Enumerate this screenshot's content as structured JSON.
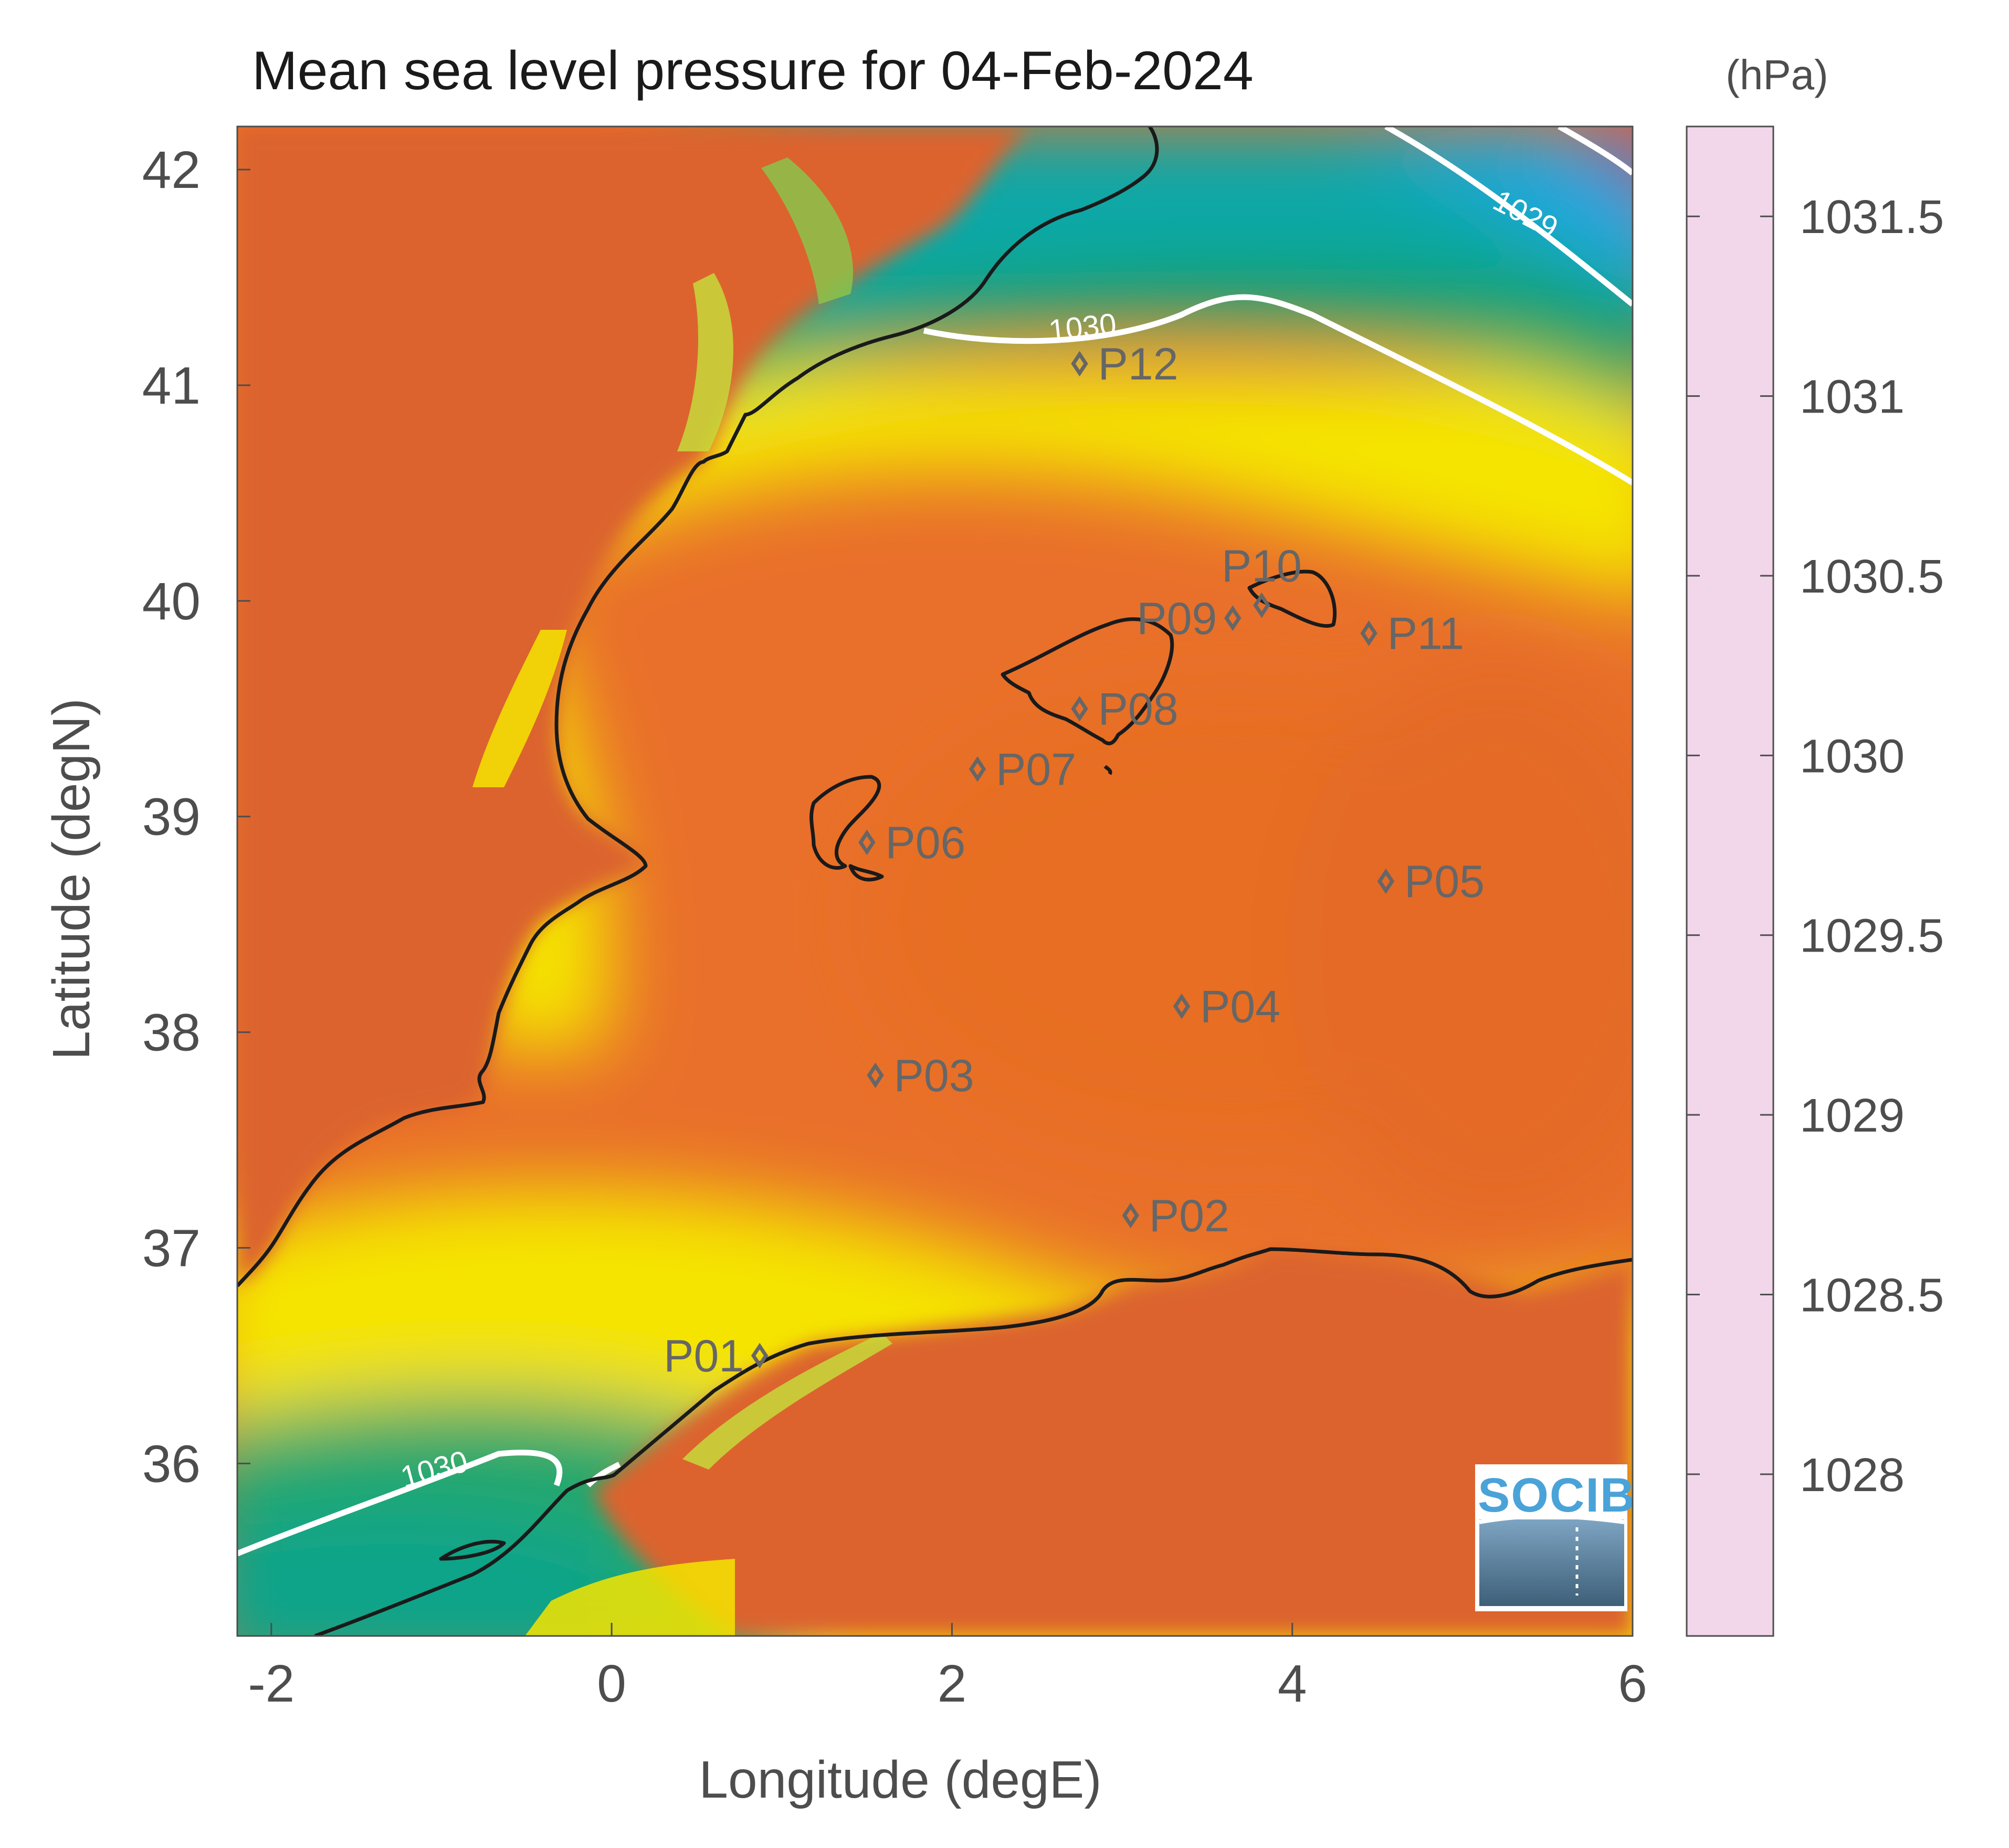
{
  "title": "Mean sea level pressure for 04-Feb-2024",
  "xlabel": "Longitude (degE)",
  "ylabel": "Latitude (degN)",
  "colorbar_unit": "(hPa)",
  "logo_text": "SOCIB",
  "map": {
    "lon_range": [
      -2.2,
      6.0
    ],
    "lat_range": [
      35.2,
      42.2
    ],
    "x_ticks": [
      {
        "value": -2,
        "label": "-2"
      },
      {
        "value": 0,
        "label": "0"
      },
      {
        "value": 2,
        "label": "2"
      },
      {
        "value": 4,
        "label": "4"
      },
      {
        "value": 6,
        "label": "6"
      }
    ],
    "y_ticks": [
      {
        "value": 42,
        "label": "42"
      },
      {
        "value": 41,
        "label": "41"
      },
      {
        "value": 40,
        "label": "40"
      },
      {
        "value": 39,
        "label": "39"
      },
      {
        "value": 38,
        "label": "38"
      },
      {
        "value": 37,
        "label": "37"
      },
      {
        "value": 36,
        "label": "36"
      }
    ],
    "contour_labels": [
      {
        "text": "1029",
        "lon": 5.3,
        "lat": 41.75
      },
      {
        "text": "1030",
        "lon": 2.8,
        "lat": 41.22
      },
      {
        "text": "1030",
        "lon": -1.1,
        "lat": 35.82
      }
    ],
    "stations": [
      {
        "name": "P01",
        "lon": 0.87,
        "lat": 36.5,
        "label_side": "left"
      },
      {
        "name": "P02",
        "lon": 3.05,
        "lat": 37.15,
        "label_side": "right"
      },
      {
        "name": "P03",
        "lon": 1.55,
        "lat": 37.8,
        "label_side": "right"
      },
      {
        "name": "P04",
        "lon": 3.35,
        "lat": 38.12,
        "label_side": "right"
      },
      {
        "name": "P05",
        "lon": 4.55,
        "lat": 38.7,
        "label_side": "right"
      },
      {
        "name": "P06",
        "lon": 1.5,
        "lat": 38.88,
        "label_side": "right"
      },
      {
        "name": "P07",
        "lon": 2.15,
        "lat": 39.22,
        "label_side": "right"
      },
      {
        "name": "P08",
        "lon": 2.75,
        "lat": 39.5,
        "label_side": "right"
      },
      {
        "name": "P09",
        "lon": 3.65,
        "lat": 39.92,
        "label_side": "left"
      },
      {
        "name": "P10",
        "lon": 3.82,
        "lat": 39.98,
        "label_side": "above"
      },
      {
        "name": "P11",
        "lon": 4.45,
        "lat": 39.85,
        "label_side": "right"
      },
      {
        "name": "P12",
        "lon": 2.75,
        "lat": 41.1,
        "label_side": "right"
      }
    ]
  },
  "colorbar": {
    "min": 1027.55,
    "max": 1031.75,
    "ticks": [
      {
        "value": 1031.5,
        "label": "1031.5"
      },
      {
        "value": 1031.0,
        "label": "1031"
      },
      {
        "value": 1030.5,
        "label": "1030.5"
      },
      {
        "value": 1030.0,
        "label": "1030"
      },
      {
        "value": 1029.5,
        "label": "1029.5"
      },
      {
        "value": 1029.0,
        "label": "1029"
      },
      {
        "value": 1028.5,
        "label": "1028.5"
      },
      {
        "value": 1028.0,
        "label": "1028"
      }
    ],
    "stops": [
      {
        "value": 1027.55,
        "color": "#f2d6ea"
      },
      {
        "value": 1027.8,
        "color": "#d55aa8"
      },
      {
        "value": 1028.5,
        "color": "#7a5aa6"
      },
      {
        "value": 1029.0,
        "color": "#1ea8e0"
      },
      {
        "value": 1029.5,
        "color": "#16b1b0"
      },
      {
        "value": 1030.0,
        "color": "#009a56"
      },
      {
        "value": 1030.5,
        "color": "#9ccd3a"
      },
      {
        "value": 1031.0,
        "color": "#f5e400"
      },
      {
        "value": 1031.5,
        "color": "#ef7a22"
      },
      {
        "value": 1031.75,
        "color": "#dc632f"
      }
    ]
  },
  "colors": {
    "land": "#dc632f",
    "sea_high": "#e9702a",
    "sea_mid": "#f5c414",
    "sea_yellow": "#f5e400",
    "sea_green": "#009a56",
    "sea_cyan": "#16b1b0",
    "sea_blue": "#1ea8e0",
    "sea_purple": "#7a5aa6",
    "contour": "#ffffff",
    "coastline": "#1a1a1a",
    "station_marker": "#666666"
  }
}
